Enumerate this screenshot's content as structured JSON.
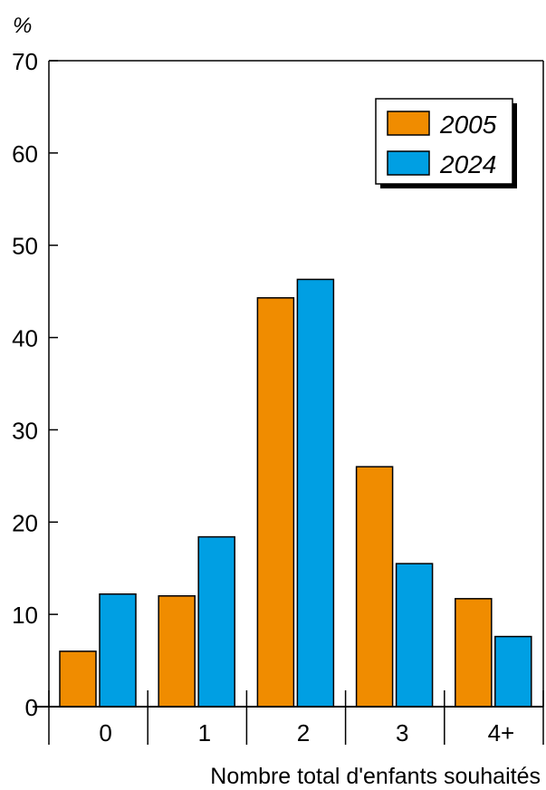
{
  "chart_data": {
    "type": "bar",
    "title": "",
    "unit_label": "%",
    "xlabel": "Nombre total d'enfants souhaités",
    "ylabel": "",
    "ylim": [
      0,
      70
    ],
    "yticks": [
      "0",
      "10",
      "20",
      "30",
      "40",
      "50",
      "60",
      "70"
    ],
    "grid": false,
    "legend_position": "top-right",
    "categories": [
      "0",
      "1",
      "2",
      "3",
      "4+"
    ],
    "series": [
      {
        "name": "2005",
        "color": "#f08c00",
        "values": [
          6,
          12,
          44.3,
          26,
          11.7
        ]
      },
      {
        "name": "2024",
        "color": "#009fe3",
        "values": [
          12.2,
          18.4,
          46.3,
          15.5,
          7.6
        ]
      }
    ]
  }
}
